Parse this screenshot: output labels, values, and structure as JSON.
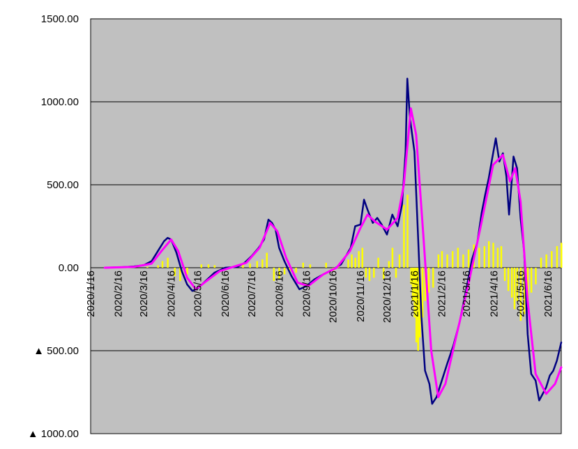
{
  "chart_data": {
    "type": "line",
    "title": "",
    "xlabel": "",
    "ylabel": "",
    "ylim": [
      -1000,
      1500
    ],
    "grid": true,
    "legend": "none",
    "y_ticks": [
      1500,
      1000,
      500,
      0,
      -500,
      -1000
    ],
    "y_tick_labels": [
      "1500.00",
      "1000.00",
      "500.00",
      "0.00",
      "▲ 500.00",
      "▲ 1000.00"
    ],
    "x_tick_labels": [
      "2020/1/16",
      "2020/2/16",
      "2020/3/16",
      "2020/4/16",
      "2020/5/16",
      "2020/6/16",
      "2020/7/16",
      "2020/8/16",
      "2020/9/16",
      "2020/10/16",
      "2020/11/16",
      "2020/12/16",
      "2021/1/16",
      "2021/2/16",
      "2021/3/16",
      "2021/4/16",
      "2021/5/16",
      "2021/6/16"
    ],
    "x_range": [
      "2020-01-16",
      "2021-07-01"
    ],
    "colors": {
      "plot_bg": "#c0c0c0",
      "series_dark": "#000080",
      "series_magenta": "#ff00ff",
      "bars_yellow": "#ffff00",
      "grid": "#000000"
    },
    "series": [
      {
        "style": "dark-navy-line",
        "points": [
          [
            "2020-02-01",
            0
          ],
          [
            "2020-02-20",
            3
          ],
          [
            "2020-03-05",
            8
          ],
          [
            "2020-03-16",
            15
          ],
          [
            "2020-03-25",
            40
          ],
          [
            "2020-04-01",
            100
          ],
          [
            "2020-04-08",
            160
          ],
          [
            "2020-04-12",
            180
          ],
          [
            "2020-04-16",
            170
          ],
          [
            "2020-04-22",
            90
          ],
          [
            "2020-04-28",
            -20
          ],
          [
            "2020-05-04",
            -100
          ],
          [
            "2020-05-10",
            -140
          ],
          [
            "2020-05-16",
            -125
          ],
          [
            "2020-05-25",
            -80
          ],
          [
            "2020-06-04",
            -30
          ],
          [
            "2020-06-16",
            0
          ],
          [
            "2020-06-30",
            5
          ],
          [
            "2020-07-08",
            30
          ],
          [
            "2020-07-16",
            70
          ],
          [
            "2020-07-24",
            120
          ],
          [
            "2020-07-30",
            170
          ],
          [
            "2020-08-04",
            290
          ],
          [
            "2020-08-08",
            270
          ],
          [
            "2020-08-12",
            230
          ],
          [
            "2020-08-16",
            120
          ],
          [
            "2020-08-22",
            40
          ],
          [
            "2020-08-30",
            -50
          ],
          [
            "2020-09-08",
            -130
          ],
          [
            "2020-09-16",
            -110
          ],
          [
            "2020-09-25",
            -70
          ],
          [
            "2020-10-05",
            -40
          ],
          [
            "2020-10-16",
            -10
          ],
          [
            "2020-10-25",
            20
          ],
          [
            "2020-11-05",
            120
          ],
          [
            "2020-11-10",
            250
          ],
          [
            "2020-11-16",
            260
          ],
          [
            "2020-11-20",
            410
          ],
          [
            "2020-11-24",
            350
          ],
          [
            "2020-11-30",
            270
          ],
          [
            "2020-12-05",
            300
          ],
          [
            "2020-12-10",
            260
          ],
          [
            "2020-12-16",
            200
          ],
          [
            "2020-12-22",
            320
          ],
          [
            "2020-12-28",
            250
          ],
          [
            "2021-01-02",
            380
          ],
          [
            "2021-01-06",
            700
          ],
          [
            "2021-01-08",
            1140
          ],
          [
            "2021-01-11",
            900
          ],
          [
            "2021-01-16",
            700
          ],
          [
            "2021-01-20",
            200
          ],
          [
            "2021-01-24",
            -300
          ],
          [
            "2021-01-28",
            -620
          ],
          [
            "2021-02-02",
            -700
          ],
          [
            "2021-02-05",
            -820
          ],
          [
            "2021-02-10",
            -780
          ],
          [
            "2021-02-16",
            -680
          ],
          [
            "2021-02-22",
            -580
          ],
          [
            "2021-03-01",
            -470
          ],
          [
            "2021-03-08",
            -330
          ],
          [
            "2021-03-16",
            -120
          ],
          [
            "2021-03-22",
            50
          ],
          [
            "2021-03-28",
            150
          ],
          [
            "2021-04-02",
            330
          ],
          [
            "2021-04-06",
            440
          ],
          [
            "2021-04-10",
            540
          ],
          [
            "2021-04-14",
            660
          ],
          [
            "2021-04-18",
            780
          ],
          [
            "2021-04-22",
            640
          ],
          [
            "2021-04-26",
            690
          ],
          [
            "2021-04-30",
            550
          ],
          [
            "2021-05-03",
            320
          ],
          [
            "2021-05-06",
            520
          ],
          [
            "2021-05-08",
            670
          ],
          [
            "2021-05-12",
            600
          ],
          [
            "2021-05-16",
            300
          ],
          [
            "2021-05-20",
            100
          ],
          [
            "2021-05-24",
            -400
          ],
          [
            "2021-05-28",
            -640
          ],
          [
            "2021-06-02",
            -680
          ],
          [
            "2021-06-06",
            -800
          ],
          [
            "2021-06-10",
            -760
          ],
          [
            "2021-06-14",
            -720
          ],
          [
            "2021-06-18",
            -650
          ],
          [
            "2021-06-22",
            -620
          ],
          [
            "2021-06-26",
            -560
          ],
          [
            "2021-07-01",
            -450
          ]
        ]
      },
      {
        "style": "magenta-smoothed-line",
        "points": [
          [
            "2020-02-01",
            0
          ],
          [
            "2020-03-05",
            5
          ],
          [
            "2020-03-25",
            25
          ],
          [
            "2020-04-05",
            100
          ],
          [
            "2020-04-16",
            170
          ],
          [
            "2020-04-24",
            100
          ],
          [
            "2020-05-04",
            -60
          ],
          [
            "2020-05-14",
            -130
          ],
          [
            "2020-05-26",
            -80
          ],
          [
            "2020-06-10",
            -20
          ],
          [
            "2020-06-25",
            5
          ],
          [
            "2020-07-10",
            30
          ],
          [
            "2020-07-25",
            120
          ],
          [
            "2020-08-06",
            270
          ],
          [
            "2020-08-14",
            220
          ],
          [
            "2020-08-24",
            60
          ],
          [
            "2020-09-06",
            -90
          ],
          [
            "2020-09-18",
            -110
          ],
          [
            "2020-10-05",
            -40
          ],
          [
            "2020-10-20",
            0
          ],
          [
            "2020-11-04",
            100
          ],
          [
            "2020-11-16",
            240
          ],
          [
            "2020-11-24",
            320
          ],
          [
            "2020-12-02",
            280
          ],
          [
            "2020-12-16",
            230
          ],
          [
            "2020-12-28",
            300
          ],
          [
            "2021-01-04",
            500
          ],
          [
            "2021-01-12",
            960
          ],
          [
            "2021-01-18",
            800
          ],
          [
            "2021-01-26",
            200
          ],
          [
            "2021-02-04",
            -500
          ],
          [
            "2021-02-12",
            -780
          ],
          [
            "2021-02-20",
            -700
          ],
          [
            "2021-03-04",
            -420
          ],
          [
            "2021-03-18",
            -100
          ],
          [
            "2021-04-01",
            250
          ],
          [
            "2021-04-15",
            620
          ],
          [
            "2021-04-26",
            680
          ],
          [
            "2021-05-04",
            520
          ],
          [
            "2021-05-10",
            600
          ],
          [
            "2021-05-16",
            400
          ],
          [
            "2021-05-24",
            -200
          ],
          [
            "2021-06-02",
            -640
          ],
          [
            "2021-06-14",
            -760
          ],
          [
            "2021-06-24",
            -700
          ],
          [
            "2021-07-01",
            -600
          ]
        ]
      },
      {
        "style": "yellow-daily-bars",
        "type": "bar",
        "points": [
          [
            "2020-03-20",
            5
          ],
          [
            "2020-04-01",
            15
          ],
          [
            "2020-04-06",
            40
          ],
          [
            "2020-04-12",
            60
          ],
          [
            "2020-04-20",
            -50
          ],
          [
            "2020-04-26",
            -80
          ],
          [
            "2020-05-04",
            -40
          ],
          [
            "2020-05-20",
            20
          ],
          [
            "2020-05-28",
            20
          ],
          [
            "2020-06-04",
            15
          ],
          [
            "2020-07-06",
            20
          ],
          [
            "2020-07-14",
            25
          ],
          [
            "2020-07-22",
            40
          ],
          [
            "2020-07-28",
            50
          ],
          [
            "2020-08-02",
            90
          ],
          [
            "2020-08-10",
            -80
          ],
          [
            "2020-08-16",
            -70
          ],
          [
            "2020-08-22",
            -40
          ],
          [
            "2020-08-28",
            -20
          ],
          [
            "2020-09-04",
            -30
          ],
          [
            "2020-09-12",
            30
          ],
          [
            "2020-09-20",
            20
          ],
          [
            "2020-10-08",
            30
          ],
          [
            "2020-10-16",
            -20
          ],
          [
            "2020-10-22",
            20
          ],
          [
            "2020-11-02",
            50
          ],
          [
            "2020-11-06",
            80
          ],
          [
            "2020-11-10",
            60
          ],
          [
            "2020-11-14",
            100
          ],
          [
            "2020-11-18",
            120
          ],
          [
            "2020-11-22",
            -60
          ],
          [
            "2020-11-26",
            -80
          ],
          [
            "2020-12-01",
            -60
          ],
          [
            "2020-12-06",
            60
          ],
          [
            "2020-12-12",
            -70
          ],
          [
            "2020-12-18",
            40
          ],
          [
            "2020-12-22",
            120
          ],
          [
            "2020-12-26",
            -60
          ],
          [
            "2020-12-30",
            80
          ],
          [
            "2021-01-04",
            380
          ],
          [
            "2021-01-08",
            440
          ],
          [
            "2021-01-12",
            -100
          ],
          [
            "2021-01-14",
            -200
          ],
          [
            "2021-01-16",
            -300
          ],
          [
            "2021-01-18",
            -450
          ],
          [
            "2021-01-20",
            -500
          ],
          [
            "2021-01-22",
            -420
          ],
          [
            "2021-01-25",
            -300
          ],
          [
            "2021-01-28",
            -200
          ],
          [
            "2021-02-01",
            -150
          ],
          [
            "2021-02-06",
            -120
          ],
          [
            "2021-02-12",
            80
          ],
          [
            "2021-02-16",
            100
          ],
          [
            "2021-02-22",
            80
          ],
          [
            "2021-02-28",
            100
          ],
          [
            "2021-03-06",
            120
          ],
          [
            "2021-03-12",
            80
          ],
          [
            "2021-03-18",
            110
          ],
          [
            "2021-03-24",
            140
          ],
          [
            "2021-03-30",
            120
          ],
          [
            "2021-04-05",
            130
          ],
          [
            "2021-04-10",
            160
          ],
          [
            "2021-04-15",
            150
          ],
          [
            "2021-04-20",
            120
          ],
          [
            "2021-04-24",
            130
          ],
          [
            "2021-04-28",
            -80
          ],
          [
            "2021-05-02",
            -140
          ],
          [
            "2021-05-06",
            -180
          ],
          [
            "2021-05-09",
            -250
          ],
          [
            "2021-05-12",
            -200
          ],
          [
            "2021-05-16",
            -320
          ],
          [
            "2021-05-20",
            -280
          ],
          [
            "2021-05-24",
            -200
          ],
          [
            "2021-05-28",
            -150
          ],
          [
            "2021-06-02",
            -100
          ],
          [
            "2021-06-08",
            60
          ],
          [
            "2021-06-14",
            80
          ],
          [
            "2021-06-20",
            100
          ],
          [
            "2021-06-26",
            130
          ],
          [
            "2021-07-01",
            150
          ]
        ]
      }
    ]
  }
}
